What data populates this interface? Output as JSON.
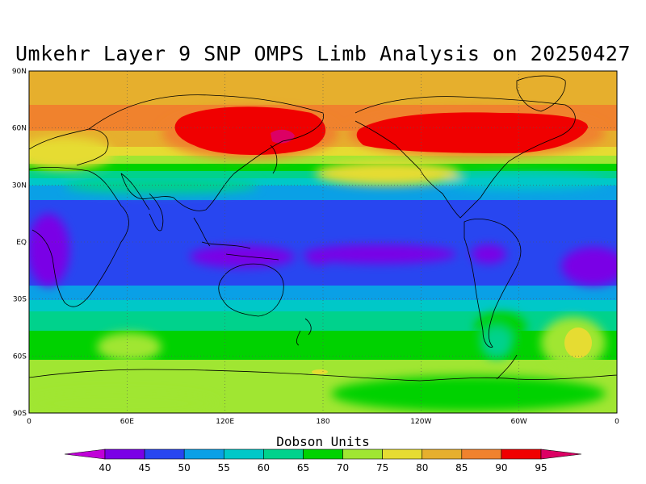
{
  "title": "Umkehr Layer 9 SNP OMPS Limb Analysis on 20250427",
  "map": {
    "lat_ticks": [
      "90N",
      "60N",
      "30N",
      "EQ",
      "30S",
      "60S",
      "90S"
    ],
    "lon_ticks": [
      "0",
      "60E",
      "120E",
      "180",
      "120W",
      "60W",
      "0"
    ]
  },
  "colorbar": {
    "title": "Dobson Units",
    "levels": [
      "40",
      "45",
      "50",
      "55",
      "60",
      "65",
      "70",
      "75",
      "80",
      "85",
      "90",
      "95"
    ],
    "colors": [
      "#c000d8",
      "#7a00e6",
      "#2846f0",
      "#0aa0e6",
      "#00c8c8",
      "#00d28c",
      "#00d200",
      "#a0e632",
      "#e6dc32",
      "#e6af2d",
      "#f0822d",
      "#f00000",
      "#dc0064"
    ]
  }
}
